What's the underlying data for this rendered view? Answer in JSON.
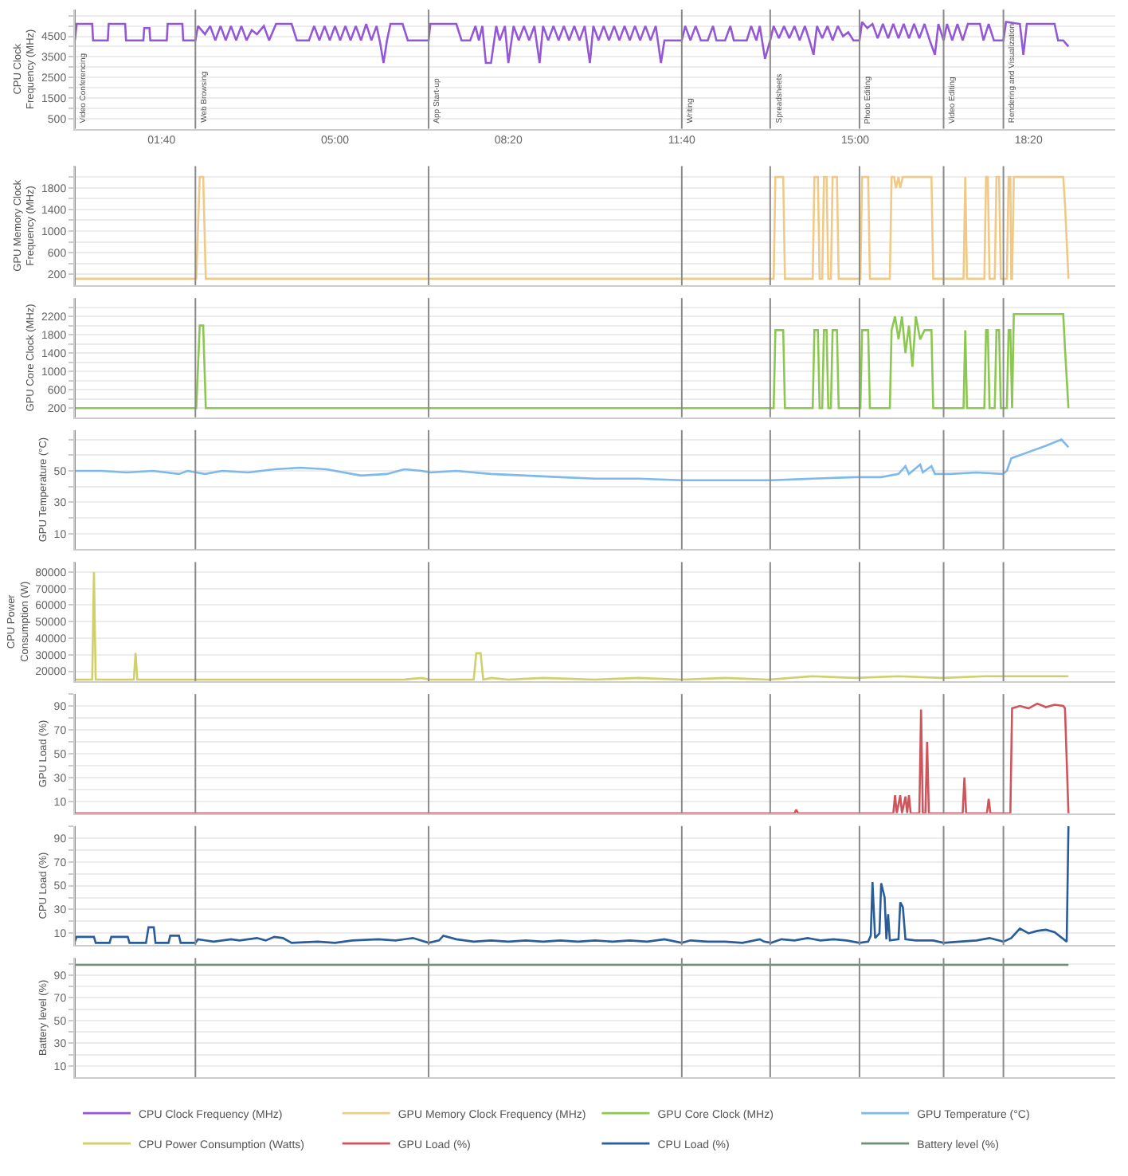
{
  "chart_data": [
    {
      "type": "line",
      "ylabel": "CPU Clock Frequency (MHz)",
      "grid": "y",
      "legend": "bottom",
      "xlim": [
        0,
        1200
      ],
      "xticks": [
        {
          "value": 100,
          "label": "01:40"
        },
        {
          "value": 300,
          "label": "05:00"
        },
        {
          "value": 500,
          "label": "08:20"
        },
        {
          "value": 700,
          "label": "11:40"
        },
        {
          "value": 900,
          "label": "15:00"
        },
        {
          "value": 1100,
          "label": "18:20"
        }
      ],
      "ylim": [
        0,
        5800
      ],
      "yticks": [
        500,
        {
          "value": 1000,
          "label": null
        },
        1500,
        {
          "value": 2000,
          "label": null
        },
        2500,
        {
          "value": 3000,
          "label": null
        },
        3500,
        {
          "value": 4000,
          "label": null
        },
        4500,
        {
          "value": 5000,
          "label": null
        },
        {
          "value": 5500,
          "label": null
        }
      ],
      "ref_lines": [
        {
          "axis": "x",
          "value": 0,
          "label": "Video Conferencing"
        },
        {
          "axis": "x",
          "value": 139,
          "label": "Web Browsing"
        },
        {
          "axis": "x",
          "value": 408,
          "label": "App Start-up"
        },
        {
          "axis": "x",
          "value": 700,
          "label": "Writing"
        },
        {
          "axis": "x",
          "value": 802,
          "label": "Spreadsheets"
        },
        {
          "axis": "x",
          "value": 905,
          "label": "Photo Editing"
        },
        {
          "axis": "x",
          "value": 1002,
          "label": "Video Editing"
        },
        {
          "axis": "x",
          "value": 1071,
          "label": "Rendering and Visualization"
        }
      ],
      "x": [
        0,
        2,
        20,
        21,
        38,
        39,
        58,
        59,
        79,
        80,
        86,
        87,
        106,
        107,
        124,
        125,
        139,
        142,
        150,
        156,
        162,
        168,
        174,
        180,
        186,
        192,
        198,
        204,
        210,
        218,
        224,
        232,
        250,
        256,
        270,
        276,
        282,
        288,
        294,
        300,
        306,
        312,
        318,
        324,
        330,
        336,
        342,
        348,
        352,
        356,
        360,
        364,
        378,
        384,
        408,
        410,
        440,
        446,
        456,
        462,
        466,
        470,
        474,
        480,
        486,
        490,
        496,
        500,
        506,
        512,
        518,
        524,
        530,
        536,
        540,
        546,
        552,
        558,
        564,
        570,
        576,
        582,
        588,
        594,
        598,
        604,
        610,
        616,
        622,
        628,
        634,
        640,
        646,
        652,
        658,
        664,
        670,
        676,
        680,
        690,
        700,
        704,
        710,
        716,
        722,
        730,
        736,
        740,
        750,
        756,
        760,
        775,
        780,
        786,
        790,
        796,
        802,
        806,
        812,
        818,
        824,
        830,
        836,
        842,
        848,
        852,
        856,
        862,
        868,
        874,
        880,
        886,
        892,
        898,
        905,
        908,
        914,
        920,
        926,
        932,
        938,
        944,
        950,
        956,
        962,
        968,
        974,
        980,
        986,
        992,
        996,
        1002,
        1006,
        1012,
        1018,
        1024,
        1030,
        1044,
        1048,
        1054,
        1060,
        1071,
        1074,
        1090,
        1094,
        1098,
        1130,
        1134,
        1140,
        1146
      ],
      "series": [
        {
          "name": "CPU Clock Frequency (MHz)",
          "color": "#9457d6",
          "values": [
            4300,
            5100,
            5100,
            4300,
            4300,
            5100,
            5100,
            4300,
            4300,
            4900,
            4900,
            4300,
            4300,
            5100,
            5100,
            4300,
            4300,
            5000,
            4600,
            5000,
            4300,
            5000,
            4300,
            5000,
            4300,
            5000,
            4300,
            4800,
            4600,
            5000,
            4300,
            5100,
            5100,
            4300,
            4300,
            5000,
            4300,
            5000,
            4300,
            5000,
            4300,
            5000,
            4300,
            5000,
            4300,
            5100,
            4300,
            5000,
            4200,
            3200,
            4300,
            5100,
            5100,
            4300,
            4300,
            5100,
            5100,
            4300,
            4300,
            5000,
            4300,
            5000,
            3200,
            3200,
            5000,
            4300,
            5000,
            3200,
            5000,
            4300,
            5000,
            4300,
            5000,
            3200,
            5000,
            4300,
            5000,
            4300,
            5000,
            4300,
            5000,
            4300,
            5000,
            3200,
            5000,
            4300,
            5000,
            4300,
            5000,
            4300,
            5000,
            4300,
            5000,
            4300,
            5000,
            4300,
            5000,
            3200,
            4300,
            4300,
            4300,
            5000,
            4300,
            5000,
            4300,
            4300,
            5000,
            4300,
            4300,
            5000,
            4300,
            4300,
            5000,
            4300,
            5000,
            3400,
            4300,
            5000,
            4400,
            5000,
            4400,
            5000,
            4300,
            5000,
            4200,
            3600,
            5000,
            4400,
            5000,
            4300,
            5000,
            4500,
            4700,
            4300,
            4300,
            5200,
            4900,
            5100,
            4400,
            5100,
            4400,
            5100,
            4400,
            5100,
            4400,
            5100,
            4400,
            5100,
            4300,
            3600,
            5100,
            4300,
            5100,
            4300,
            5100,
            4300,
            5100,
            5100,
            4300,
            5100,
            4300,
            4300,
            5200,
            5100,
            3600,
            5100,
            5100,
            4300,
            4300,
            4000
          ]
        }
      ]
    },
    {
      "type": "line",
      "ylabel": "GPU Memory Clock Frequency (MHz)",
      "grid": "y",
      "legend": "bottom",
      "tick_labels": "y",
      "xlim": [
        0,
        1200
      ],
      "xticks": [
        {
          "value": 100,
          "label": null
        },
        {
          "value": 300,
          "label": null
        },
        {
          "value": 500,
          "label": null
        },
        {
          "value": 700,
          "label": null
        },
        {
          "value": 900,
          "label": null
        },
        {
          "value": 1100,
          "label": null
        }
      ],
      "ylim": [
        0,
        2200
      ],
      "yticks": [
        200,
        {
          "value": 400,
          "label": null
        },
        600,
        {
          "value": 800,
          "label": null
        },
        1000,
        {
          "value": 1200,
          "label": null
        },
        1400,
        {
          "value": 1600,
          "label": null
        },
        1800,
        {
          "value": 2000,
          "label": null
        }
      ],
      "ref_lines": [
        {
          "axis": "x",
          "value": 0
        },
        {
          "axis": "x",
          "value": 139
        },
        {
          "axis": "x",
          "value": 408
        },
        {
          "axis": "x",
          "value": 700
        },
        {
          "axis": "x",
          "value": 802
        },
        {
          "axis": "x",
          "value": 905
        },
        {
          "axis": "x",
          "value": 1002
        },
        {
          "axis": "x",
          "value": 1071
        }
      ],
      "x": [
        0,
        140,
        144,
        148,
        151,
        806,
        808,
        817,
        819,
        851,
        853,
        857,
        859,
        862,
        864,
        867,
        869,
        872,
        874,
        879,
        881,
        906,
        908,
        915,
        917,
        940,
        942,
        945,
        947,
        950,
        952,
        955,
        988,
        990,
        1025,
        1027,
        1029,
        1049,
        1051,
        1053,
        1055,
        1061,
        1063,
        1066,
        1068,
        1075,
        1077,
        1079,
        1080,
        1081,
        1083,
        1140,
        1142,
        1146
      ],
      "series": [
        {
          "name": "GPU Memory Clock Frequency (MHz)",
          "color": "#f0c987",
          "values": [
            120,
            120,
            2000,
            2000,
            120,
            120,
            2000,
            2000,
            120,
            120,
            2000,
            2000,
            120,
            120,
            2000,
            2000,
            120,
            120,
            2000,
            2000,
            120,
            120,
            2000,
            2000,
            120,
            120,
            2000,
            2000,
            1800,
            2000,
            1800,
            2000,
            2000,
            120,
            120,
            2000,
            120,
            120,
            2000,
            2000,
            120,
            120,
            2000,
            2000,
            120,
            120,
            2000,
            2000,
            120,
            120,
            2000,
            2000,
            1500,
            120
          ]
        }
      ]
    },
    {
      "type": "line",
      "ylabel": "GPU Core Clock (MHz)",
      "grid": "y",
      "legend": "bottom",
      "tick_labels": "y",
      "xlim": [
        0,
        1200
      ],
      "xticks": [
        {
          "value": 100,
          "label": null
        },
        {
          "value": 300,
          "label": null
        },
        {
          "value": 500,
          "label": null
        },
        {
          "value": 700,
          "label": null
        },
        {
          "value": 900,
          "label": null
        },
        {
          "value": 1100,
          "label": null
        }
      ],
      "ylim": [
        0,
        2600
      ],
      "yticks": [
        200,
        {
          "value": 400,
          "label": null
        },
        600,
        {
          "value": 800,
          "label": null
        },
        1000,
        {
          "value": 1200,
          "label": null
        },
        1400,
        {
          "value": 1600,
          "label": null
        },
        1800,
        {
          "value": 2000,
          "label": null
        },
        2200,
        {
          "value": 2400,
          "label": null
        }
      ],
      "ref_lines": [
        {
          "axis": "x",
          "value": 0
        },
        {
          "axis": "x",
          "value": 139
        },
        {
          "axis": "x",
          "value": 408
        },
        {
          "axis": "x",
          "value": 700
        },
        {
          "axis": "x",
          "value": 802
        },
        {
          "axis": "x",
          "value": 905
        },
        {
          "axis": "x",
          "value": 1002
        },
        {
          "axis": "x",
          "value": 1071
        }
      ],
      "x": [
        0,
        140,
        144,
        148,
        151,
        806,
        808,
        817,
        819,
        851,
        853,
        857,
        859,
        862,
        864,
        867,
        869,
        872,
        874,
        879,
        881,
        906,
        908,
        915,
        917,
        940,
        942,
        946,
        950,
        954,
        958,
        962,
        966,
        970,
        975,
        980,
        988,
        990,
        1025,
        1027,
        1029,
        1049,
        1051,
        1053,
        1055,
        1061,
        1063,
        1066,
        1068,
        1075,
        1077,
        1079,
        1081,
        1083,
        1140,
        1142,
        1146
      ],
      "series": [
        {
          "name": "GPU Core Clock (MHz)",
          "color": "#8cc751",
          "values": [
            200,
            200,
            2000,
            2000,
            200,
            200,
            1900,
            1900,
            200,
            200,
            1900,
            1900,
            200,
            200,
            1900,
            1900,
            200,
            200,
            1900,
            1900,
            200,
            200,
            1900,
            1900,
            200,
            200,
            1900,
            2200,
            1700,
            2200,
            1400,
            2000,
            1100,
            2200,
            1700,
            1900,
            1900,
            200,
            200,
            1900,
            200,
            200,
            1900,
            1900,
            200,
            200,
            1900,
            1900,
            200,
            200,
            1900,
            1900,
            200,
            2250,
            2250,
            1500,
            200
          ]
        }
      ]
    },
    {
      "type": "line",
      "ylabel": "GPU Temperature (°C)",
      "grid": "y",
      "legend": "bottom",
      "tick_labels": "y",
      "xlim": [
        0,
        1200
      ],
      "xticks": [
        {
          "value": 100,
          "label": null
        },
        {
          "value": 300,
          "label": null
        },
        {
          "value": 500,
          "label": null
        },
        {
          "value": 700,
          "label": null
        },
        {
          "value": 900,
          "label": null
        },
        {
          "value": 1100,
          "label": null
        }
      ],
      "ylim": [
        0,
        76
      ],
      "yticks": [
        10,
        {
          "value": 20,
          "label": null
        },
        30,
        {
          "value": 40,
          "label": null
        },
        50,
        {
          "value": 60,
          "label": null
        },
        {
          "value": 70,
          "label": null
        }
      ],
      "ref_lines": [
        {
          "axis": "x",
          "value": 0
        },
        {
          "axis": "x",
          "value": 139
        },
        {
          "axis": "x",
          "value": 408
        },
        {
          "axis": "x",
          "value": 700
        },
        {
          "axis": "x",
          "value": 802
        },
        {
          "axis": "x",
          "value": 905
        },
        {
          "axis": "x",
          "value": 1002
        },
        {
          "axis": "x",
          "value": 1071
        }
      ],
      "x": [
        0,
        30,
        60,
        90,
        120,
        130,
        150,
        170,
        200,
        230,
        260,
        290,
        330,
        360,
        380,
        400,
        410,
        440,
        480,
        520,
        560,
        600,
        650,
        700,
        750,
        800,
        803,
        850,
        900,
        930,
        950,
        958,
        962,
        975,
        978,
        988,
        992,
        1010,
        1040,
        1070,
        1075,
        1080,
        1100,
        1120,
        1138,
        1146
      ],
      "series": [
        {
          "name": "GPU Temperature (°C)",
          "color": "#7db9ea",
          "values": [
            50,
            50,
            49,
            50,
            48,
            50,
            48,
            50,
            49,
            51,
            52,
            51,
            47,
            48,
            51,
            50,
            49,
            50,
            48,
            47,
            46,
            45,
            45,
            44,
            44,
            44,
            44,
            45,
            46,
            46,
            48,
            53,
            48,
            54,
            49,
            53,
            48,
            48,
            49,
            48,
            50,
            58,
            62,
            66,
            70,
            65
          ]
        }
      ]
    },
    {
      "type": "line",
      "ylabel": "CPU Power Consumption (W)",
      "grid": "y",
      "legend": "bottom",
      "tick_labels": "y",
      "xlim": [
        0,
        1200
      ],
      "xticks": [
        {
          "value": 100,
          "label": null
        },
        {
          "value": 300,
          "label": null
        },
        {
          "value": 500,
          "label": null
        },
        {
          "value": 700,
          "label": null
        },
        {
          "value": 900,
          "label": null
        },
        {
          "value": 1100,
          "label": null
        }
      ],
      "ylim": [
        14000,
        86000
      ],
      "yticks": [
        20000,
        30000,
        40000,
        50000,
        60000,
        70000,
        80000
      ],
      "ref_lines": [
        {
          "axis": "x",
          "value": 0
        },
        {
          "axis": "x",
          "value": 139
        },
        {
          "axis": "x",
          "value": 408
        },
        {
          "axis": "x",
          "value": 700
        },
        {
          "axis": "x",
          "value": 802
        },
        {
          "axis": "x",
          "value": 905
        },
        {
          "axis": "x",
          "value": 1002
        },
        {
          "axis": "x",
          "value": 1071
        }
      ],
      "x": [
        0,
        20,
        22,
        24,
        68,
        70,
        72,
        380,
        400,
        410,
        460,
        463,
        468,
        471,
        480,
        500,
        540,
        600,
        650,
        700,
        750,
        800,
        850,
        900,
        950,
        1000,
        1050,
        1100,
        1146
      ],
      "series": [
        {
          "name": "CPU Power Consumption (Watts)",
          "color": "#cfd06a",
          "values": [
            15000,
            15000,
            80000,
            15000,
            15000,
            31000,
            15000,
            15000,
            16000,
            15000,
            15000,
            31000,
            31000,
            15000,
            16000,
            15000,
            16000,
            15000,
            16000,
            15000,
            16000,
            15000,
            17000,
            16000,
            17000,
            16000,
            17000,
            17000,
            17000
          ]
        }
      ]
    },
    {
      "type": "line",
      "ylabel": "GPU Load (%)",
      "grid": "y",
      "legend": "bottom",
      "tick_labels": "y",
      "xlim": [
        0,
        1200
      ],
      "xticks": [
        {
          "value": 100,
          "label": null
        },
        {
          "value": 300,
          "label": null
        },
        {
          "value": 500,
          "label": null
        },
        {
          "value": 700,
          "label": null
        },
        {
          "value": 900,
          "label": null
        },
        {
          "value": 1100,
          "label": null
        }
      ],
      "ylim": [
        0,
        100
      ],
      "yticks": [
        10,
        {
          "value": 20,
          "label": null
        },
        30,
        {
          "value": 40,
          "label": null
        },
        50,
        {
          "value": 60,
          "label": null
        },
        70,
        {
          "value": 80,
          "label": null
        },
        90,
        {
          "value": 100,
          "label": null
        }
      ],
      "ref_lines": [
        {
          "axis": "x",
          "value": 0
        },
        {
          "axis": "x",
          "value": 139
        },
        {
          "axis": "x",
          "value": 408
        },
        {
          "axis": "x",
          "value": 700
        },
        {
          "axis": "x",
          "value": 802
        },
        {
          "axis": "x",
          "value": 905
        },
        {
          "axis": "x",
          "value": 1002
        },
        {
          "axis": "x",
          "value": 1071
        }
      ],
      "x": [
        0,
        830,
        832,
        834,
        944,
        946,
        948,
        952,
        954,
        958,
        960,
        962,
        964,
        974,
        976,
        978,
        981,
        983,
        985,
        1024,
        1026,
        1028,
        1052,
        1054,
        1056,
        1079,
        1081,
        1090,
        1100,
        1110,
        1120,
        1130,
        1140,
        1142,
        1146
      ],
      "series": [
        {
          "name": "GPU Load (%)",
          "color": "#d0545c",
          "values": [
            0,
            0,
            3,
            0,
            0,
            15,
            0,
            15,
            0,
            14,
            0,
            15,
            0,
            0,
            87,
            0,
            0,
            60,
            0,
            0,
            30,
            0,
            0,
            12,
            0,
            0,
            88,
            90,
            88,
            92,
            89,
            91,
            90,
            88,
            0
          ]
        }
      ]
    },
    {
      "type": "line",
      "ylabel": "CPU Load (%)",
      "grid": "y",
      "legend": "bottom",
      "tick_labels": "y",
      "xlim": [
        0,
        1200
      ],
      "xticks": [
        {
          "value": 100,
          "label": null
        },
        {
          "value": 300,
          "label": null
        },
        {
          "value": 500,
          "label": null
        },
        {
          "value": 700,
          "label": null
        },
        {
          "value": 900,
          "label": null
        },
        {
          "value": 1100,
          "label": null
        }
      ],
      "ylim": [
        0,
        100
      ],
      "yticks": [
        10,
        {
          "value": 20,
          "label": null
        },
        30,
        {
          "value": 40,
          "label": null
        },
        50,
        {
          "value": 60,
          "label": null
        },
        70,
        {
          "value": 80,
          "label": null
        },
        90,
        {
          "value": 100,
          "label": null
        }
      ],
      "ref_lines": [
        {
          "axis": "x",
          "value": 0
        },
        {
          "axis": "x",
          "value": 139
        },
        {
          "axis": "x",
          "value": 408
        },
        {
          "axis": "x",
          "value": 700
        },
        {
          "axis": "x",
          "value": 802
        },
        {
          "axis": "x",
          "value": 905
        },
        {
          "axis": "x",
          "value": 1002
        },
        {
          "axis": "x",
          "value": 1071
        }
      ],
      "x": [
        0,
        2,
        22,
        24,
        40,
        42,
        61,
        63,
        82,
        85,
        91,
        93,
        108,
        110,
        120,
        122,
        139,
        142,
        160,
        180,
        190,
        210,
        220,
        230,
        240,
        250,
        280,
        300,
        320,
        350,
        370,
        390,
        408,
        420,
        425,
        440,
        460,
        480,
        500,
        520,
        540,
        560,
        580,
        600,
        620,
        640,
        660,
        680,
        700,
        710,
        730,
        750,
        770,
        790,
        795,
        803,
        815,
        830,
        845,
        860,
        875,
        890,
        905,
        915,
        918,
        920,
        923,
        928,
        930,
        934,
        936,
        938,
        940,
        950,
        952,
        955,
        958,
        970,
        990,
        1002,
        1020,
        1040,
        1055,
        1071,
        1080,
        1090,
        1100,
        1110,
        1120,
        1130,
        1144,
        1146
      ],
      "series": [
        {
          "name": "CPU Load (%)",
          "color": "#2a5c99",
          "values": [
            3,
            7,
            7,
            2,
            2,
            7,
            7,
            2,
            2,
            15,
            15,
            2,
            2,
            8,
            8,
            2,
            2,
            5,
            3,
            5,
            4,
            6,
            4,
            7,
            6,
            2,
            3,
            2,
            4,
            5,
            4,
            6,
            2,
            4,
            8,
            5,
            3,
            4,
            3,
            4,
            3,
            4,
            3,
            4,
            3,
            4,
            3,
            5,
            2,
            4,
            3,
            3,
            2,
            5,
            3,
            2,
            5,
            4,
            6,
            4,
            5,
            4,
            2,
            3,
            8,
            53,
            6,
            10,
            52,
            40,
            5,
            26,
            4,
            5,
            36,
            32,
            5,
            4,
            4,
            2,
            3,
            4,
            6,
            3,
            6,
            14,
            10,
            12,
            13,
            11,
            3,
            100
          ]
        }
      ]
    },
    {
      "type": "line",
      "ylabel": "Battery level (%)",
      "grid": "y",
      "legend": "bottom",
      "tick_labels": "y",
      "xlim": [
        0,
        1200
      ],
      "xticks": [
        {
          "value": 100,
          "label": null
        },
        {
          "value": 300,
          "label": null
        },
        {
          "value": 500,
          "label": null
        },
        {
          "value": 700,
          "label": null
        },
        {
          "value": 900,
          "label": null
        },
        {
          "value": 1100,
          "label": null
        }
      ],
      "ylim": [
        0,
        105
      ],
      "yticks": [
        10,
        {
          "value": 20,
          "label": null
        },
        30,
        {
          "value": 40,
          "label": null
        },
        50,
        {
          "value": 60,
          "label": null
        },
        70,
        {
          "value": 80,
          "label": null
        },
        90,
        {
          "value": 100,
          "label": null
        }
      ],
      "ref_lines": [
        {
          "axis": "x",
          "value": 0
        },
        {
          "axis": "x",
          "value": 139
        },
        {
          "axis": "x",
          "value": 408
        },
        {
          "axis": "x",
          "value": 700
        },
        {
          "axis": "x",
          "value": 802
        },
        {
          "axis": "x",
          "value": 905
        },
        {
          "axis": "x",
          "value": 1002
        },
        {
          "axis": "x",
          "value": 1071
        }
      ],
      "x": [
        0,
        1146
      ],
      "series": [
        {
          "name": "Battery level (%)",
          "color": "#6f8f78",
          "values": [
            99,
            99
          ]
        }
      ]
    }
  ]
}
